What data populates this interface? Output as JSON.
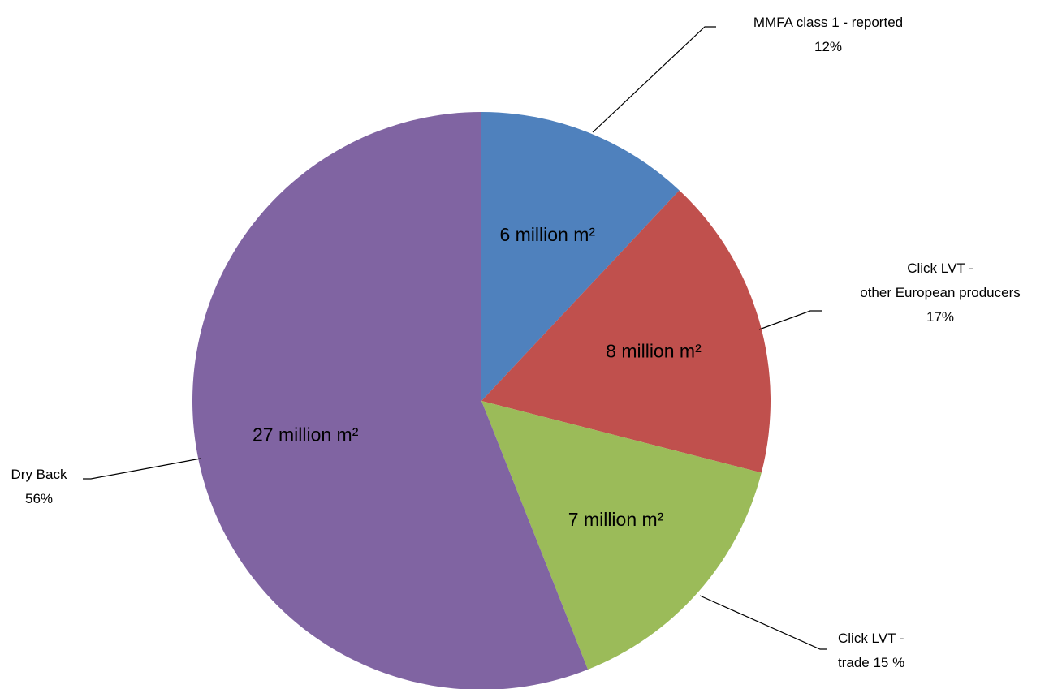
{
  "chart_data": {
    "type": "pie",
    "title": "",
    "start_angle_deg": 0,
    "direction": "clockwise",
    "slices": [
      {
        "name": [
          "MMFA class 1 - reported"
        ],
        "percent": "12%",
        "value": 12,
        "value_label": "6 million m²",
        "color": "#4F81BD"
      },
      {
        "name": [
          "Click LVT -",
          "other European producers"
        ],
        "percent": "17%",
        "value": 17,
        "value_label": "8 million m²",
        "color": "#C0504D"
      },
      {
        "name": [
          "Click LVT -",
          "trade 15 %"
        ],
        "percent": "",
        "value": 15,
        "value_label": "7 million m²",
        "color": "#9BBB59"
      },
      {
        "name": [
          "Dry Back"
        ],
        "percent": "56%",
        "value": 56,
        "value_label": "27 million m²",
        "color": "#8064A2"
      }
    ],
    "legend": "none"
  }
}
